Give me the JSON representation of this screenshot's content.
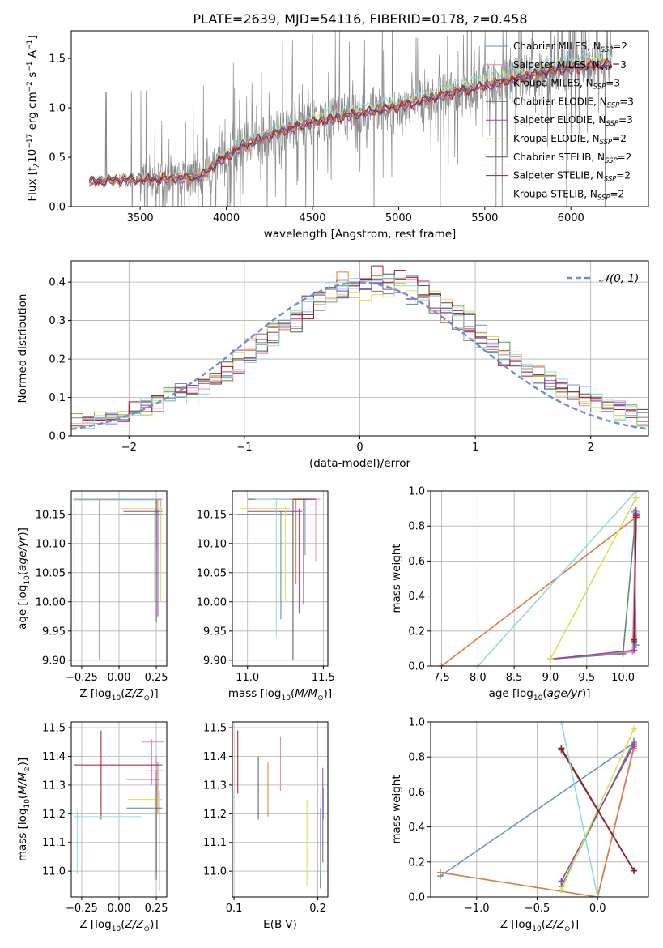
{
  "figure_title": "PLATE=2639, MJD=54116, FIBERID=0178, z=0.458",
  "colors": [
    "#6a8fd5",
    "#e78ab4",
    "#e07b39",
    "#5f8f6a",
    "#9b3eb5",
    "#d4e35a",
    "#555555",
    "#a8181c",
    "#8fdce0"
  ],
  "chart_data": [
    {
      "id": "spectrum",
      "type": "line",
      "xlabel": "wavelength [Angstrom, rest frame]",
      "ylabel_parts": [
        "Flux [f",
        "λ",
        "10",
        "−17",
        " erg cm",
        "−2",
        " s",
        "−1",
        " A",
        "−1",
        "]"
      ],
      "xlim": [
        3100,
        6450
      ],
      "ylim": [
        0,
        1.78
      ],
      "xticks": [
        3500,
        4000,
        4500,
        5000,
        5500,
        6000
      ],
      "yticks": [
        0.0,
        0.5,
        1.0,
        1.5
      ],
      "data_range": [
        3205,
        6240
      ],
      "data_trend": {
        "x": [
          3205,
          3400,
          3600,
          3850,
          3950,
          4100,
          4300,
          4500,
          4700,
          4900,
          5100,
          5300,
          5500,
          5700,
          5900,
          6100,
          6240
        ],
        "y": [
          0.25,
          0.27,
          0.28,
          0.3,
          0.45,
          0.62,
          0.75,
          0.85,
          0.92,
          0.98,
          1.05,
          1.15,
          1.22,
          1.3,
          1.38,
          1.42,
          1.45
        ]
      },
      "legend_entries": [
        {
          "prefix": "Chabrier MILES, N",
          "sub": "SSP",
          "suffix": "=2"
        },
        {
          "prefix": "Salpeter MILES, N",
          "sub": "SSP",
          "suffix": "=3"
        },
        {
          "prefix": "Kroupa MILES, N",
          "sub": "SSP",
          "suffix": "=3"
        },
        {
          "prefix": "Chabrier ELODIE, N",
          "sub": "SSP",
          "suffix": "=3"
        },
        {
          "prefix": "Salpeter ELODIE, N",
          "sub": "SSP",
          "suffix": "=3"
        },
        {
          "prefix": "Kroupa ELODIE, N",
          "sub": "SSP",
          "suffix": "=2"
        },
        {
          "prefix": "Chabrier STELIB, N",
          "sub": "SSP",
          "suffix": "=2"
        },
        {
          "prefix": "Salpeter STELIB, N",
          "sub": "SSP",
          "suffix": "=2"
        },
        {
          "prefix": "Kroupa STELIB, N",
          "sub": "SSP",
          "suffix": "=2"
        }
      ]
    },
    {
      "id": "residuals",
      "type": "line",
      "xlabel": "(data-model)/error",
      "ylabel": "Normed distribution",
      "xlim": [
        -2.5,
        2.5
      ],
      "ylim": [
        0,
        0.455
      ],
      "xticks": [
        -2,
        -1,
        0,
        1,
        2
      ],
      "yticks": [
        0.0,
        0.1,
        0.2,
        0.3,
        0.4
      ],
      "legend": "𝒩(0, 1)",
      "gaussian": {
        "mean": 0,
        "sigma": 1,
        "color": "#6a8fd5"
      }
    },
    {
      "id": "age_vs_Z",
      "type": "scatter",
      "xlabel": "Z [log10(Z/Z⊙)]",
      "ylabel": "age [log10(age/yr)]",
      "xlim": [
        -0.32,
        0.32
      ],
      "ylim": [
        9.89,
        10.19
      ],
      "xticks": [
        -0.25,
        0.0,
        0.25
      ],
      "yticks": [
        9.9,
        9.95,
        10.0,
        10.05,
        10.1,
        10.15
      ],
      "points": [
        {
          "x": 0.25,
          "y": 10.175,
          "xl": -0.3,
          "xh": 0.28,
          "yl": 10.09,
          "yh": 10.175
        },
        {
          "x": 0.28,
          "y": 10.176,
          "xl": -0.29,
          "xh": 0.29,
          "yl": 10.1,
          "yh": 10.176
        },
        {
          "x": 0.26,
          "y": 10.176,
          "xl": -0.29,
          "xh": 0.29,
          "yl": 10.08,
          "yh": 10.176
        },
        {
          "x": 0.24,
          "y": 10.15,
          "xl": 0.02,
          "xh": 0.29,
          "yl": 10.0,
          "yh": 10.16
        },
        {
          "x": 0.26,
          "y": 10.155,
          "xl": 0.03,
          "xh": 0.29,
          "yl": 9.975,
          "yh": 10.16
        },
        {
          "x": 0.28,
          "y": 10.16,
          "xl": 0.02,
          "xh": 0.29,
          "yl": 10.0,
          "yh": 10.165
        },
        {
          "x": 0.25,
          "y": 10.176,
          "xl": -0.3,
          "xh": 0.29,
          "yl": 9.965,
          "yh": 10.176
        },
        {
          "x": -0.13,
          "y": 10.176,
          "xl": -0.3,
          "xh": 0.29,
          "yl": 9.9,
          "yh": 10.176
        },
        {
          "x": -0.3,
          "y": 10.176,
          "xl": -0.31,
          "xh": 0.29,
          "yl": 9.94,
          "yh": 10.176
        }
      ]
    },
    {
      "id": "age_vs_mass",
      "type": "scatter",
      "xlabel": "mass [log10(M/M⊙)]",
      "ylabel": "",
      "xlim": [
        10.9,
        11.53
      ],
      "ylim": [
        9.89,
        10.19
      ],
      "xticks": [
        11.0,
        11.5
      ],
      "yticks": [
        9.9,
        9.95,
        10.0,
        10.05,
        10.1,
        10.15
      ],
      "points": [
        {
          "x": 11.38,
          "y": 10.176,
          "xl": 11.28,
          "xh": 11.4,
          "yl": 10.08,
          "yh": 10.176
        },
        {
          "x": 11.45,
          "y": 10.176,
          "xl": 11.3,
          "xh": 11.48,
          "yl": 10.07,
          "yh": 10.176
        },
        {
          "x": 11.32,
          "y": 10.176,
          "xl": 11.25,
          "xh": 11.4,
          "yl": 10.03,
          "yh": 10.176
        },
        {
          "x": 11.22,
          "y": 10.15,
          "xl": 10.93,
          "xh": 11.3,
          "yl": 9.97,
          "yh": 10.155
        },
        {
          "x": 11.34,
          "y": 10.155,
          "xl": 11.0,
          "xh": 11.36,
          "yl": 9.98,
          "yh": 10.16
        },
        {
          "x": 11.25,
          "y": 10.16,
          "xl": 10.95,
          "xh": 11.28,
          "yl": 10.0,
          "yh": 10.163
        },
        {
          "x": 11.3,
          "y": 10.176,
          "xl": 11.0,
          "xh": 11.43,
          "yl": 9.9,
          "yh": 10.176
        },
        {
          "x": 11.37,
          "y": 10.176,
          "xl": 11.18,
          "xh": 11.45,
          "yl": 9.995,
          "yh": 10.176
        },
        {
          "x": 11.19,
          "y": 10.176,
          "xl": 11.05,
          "xh": 11.3,
          "yl": 9.94,
          "yh": 10.176
        }
      ]
    },
    {
      "id": "weight_vs_age",
      "type": "line",
      "xlabel": "age [log10(age/yr)]",
      "ylabel": "mass weight",
      "xlim": [
        7.35,
        10.35
      ],
      "ylim": [
        0,
        1
      ],
      "xticks": [
        7.5,
        8.0,
        8.5,
        9.0,
        9.5,
        10.0
      ],
      "yticks": [
        0.0,
        0.2,
        0.4,
        0.6,
        0.8,
        1.0
      ],
      "series": [
        {
          "x": [
            10.15,
            10.18
          ],
          "y": [
            0.88,
            0.12
          ]
        },
        {
          "x": [
            9.0,
            10.13,
            10.18
          ],
          "y": [
            0.04,
            0.08,
            0.88
          ]
        },
        {
          "x": [
            7.5,
            10.18,
            10.15
          ],
          "y": [
            0.0,
            0.85,
            0.15
          ]
        },
        {
          "x": [
            9.0,
            10.0,
            10.18
          ],
          "y": [
            0.04,
            0.07,
            0.89
          ]
        },
        {
          "x": [
            9.0,
            10.15,
            10.18
          ],
          "y": [
            0.04,
            0.09,
            0.87
          ]
        },
        {
          "x": [
            9.0,
            10.18
          ],
          "y": [
            0.04,
            0.96
          ]
        },
        {
          "x": [
            10.15,
            10.18
          ],
          "y": [
            0.14,
            0.86
          ]
        },
        {
          "x": [
            10.18,
            10.15
          ],
          "y": [
            0.85,
            0.15
          ]
        },
        {
          "x": [
            8.0,
            10.18
          ],
          "y": [
            0.0,
            1.0
          ]
        }
      ]
    },
    {
      "id": "mass_vs_Z",
      "type": "scatter",
      "xlabel": "Z [log10(Z/Z⊙)]",
      "ylabel": "mass [log10(M/M⊙)]",
      "xlim": [
        -0.32,
        0.32
      ],
      "ylim": [
        10.91,
        11.52
      ],
      "xticks": [
        -0.25,
        0.0,
        0.25
      ],
      "yticks": [
        11.0,
        11.1,
        11.2,
        11.3,
        11.4,
        11.5
      ],
      "points": [
        {
          "x": 0.25,
          "y": 11.38,
          "xl": 0.2,
          "xh": 0.3,
          "yl": 11.27,
          "yh": 11.4
        },
        {
          "x": 0.22,
          "y": 11.45,
          "xl": 0.15,
          "xh": 0.3,
          "yl": 11.3,
          "yh": 11.46
        },
        {
          "x": 0.26,
          "y": 11.35,
          "xl": 0.18,
          "xh": 0.3,
          "yl": 11.2,
          "yh": 11.38
        },
        {
          "x": 0.27,
          "y": 11.22,
          "xl": 0.05,
          "xh": 0.29,
          "yl": 10.93,
          "yh": 11.28
        },
        {
          "x": 0.25,
          "y": 11.32,
          "xl": 0.05,
          "xh": 0.28,
          "yl": 10.99,
          "yh": 11.35
        },
        {
          "x": 0.24,
          "y": 11.25,
          "xl": 0.06,
          "xh": 0.29,
          "yl": 10.96,
          "yh": 11.27
        },
        {
          "x": 0.25,
          "y": 11.29,
          "xl": -0.3,
          "xh": 0.29,
          "yl": 10.97,
          "yh": 11.3
        },
        {
          "x": -0.12,
          "y": 11.37,
          "xl": -0.3,
          "xh": 0.29,
          "yl": 11.18,
          "yh": 11.49
        },
        {
          "x": -0.28,
          "y": 11.19,
          "xl": -0.3,
          "xh": 0.15,
          "yl": 10.99,
          "yh": 11.21
        }
      ]
    },
    {
      "id": "mass_vs_EBV",
      "type": "scatter",
      "xlabel": "E(B-V)",
      "ylabel": "",
      "xlim": [
        0.098,
        0.212
      ],
      "ylim": [
        10.91,
        11.52
      ],
      "xticks": [
        0.1,
        0.2
      ],
      "yticks": [
        11.0,
        11.1,
        11.2,
        11.3,
        11.4,
        11.5
      ],
      "segments": [
        {
          "x": 0.2065,
          "yl": 11.18,
          "yh": 11.29
        },
        {
          "x": 0.1555,
          "yl": 11.28,
          "yh": 11.47
        },
        {
          "x": 0.1405,
          "yl": 11.19,
          "yh": 11.38
        },
        {
          "x": 0.203,
          "yl": 10.94,
          "yh": 11.22
        },
        {
          "x": 0.206,
          "yl": 11.03,
          "yh": 11.36
        },
        {
          "x": 0.187,
          "yl": 10.95,
          "yh": 11.25
        },
        {
          "x": 0.129,
          "yl": 11.18,
          "yh": 11.4
        },
        {
          "x": 0.1045,
          "yl": 11.27,
          "yh": 11.49
        },
        {
          "x": 0.2035,
          "yl": 10.99,
          "yh": 11.27
        }
      ]
    },
    {
      "id": "weight_vs_Z",
      "type": "line",
      "xlabel": "Z [log10(Z/Z⊙)]",
      "ylabel": "mass weight",
      "xlim": [
        -1.38,
        0.42
      ],
      "ylim": [
        0,
        1
      ],
      "xticks": [
        -1.0,
        -0.5,
        0.0
      ],
      "yticks": [
        0.0,
        0.2,
        0.4,
        0.6,
        0.8,
        1.0
      ],
      "series": [
        {
          "x": [
            -1.3,
            0.3
          ],
          "y": [
            0.12,
            0.88
          ]
        },
        {
          "x": [
            0.0,
            0.3
          ],
          "y": [
            0.0,
            0.85
          ]
        },
        {
          "x": [
            -1.3,
            0.0,
            0.3
          ],
          "y": [
            0.14,
            0.0,
            0.86
          ]
        },
        {
          "x": [
            -0.3,
            0.3
          ],
          "y": [
            0.06,
            0.89
          ]
        },
        {
          "x": [
            -0.3,
            0.3
          ],
          "y": [
            0.09,
            0.87
          ]
        },
        {
          "x": [
            -0.3,
            0.3
          ],
          "y": [
            0.04,
            0.96
          ]
        },
        {
          "x": [
            -0.3,
            0.3
          ],
          "y": [
            0.84,
            0.15
          ]
        },
        {
          "x": [
            -0.3,
            0.3
          ],
          "y": [
            0.85,
            0.15
          ]
        },
        {
          "x": [
            -0.3,
            0.0
          ],
          "y": [
            1.0,
            0.0
          ]
        }
      ]
    }
  ]
}
